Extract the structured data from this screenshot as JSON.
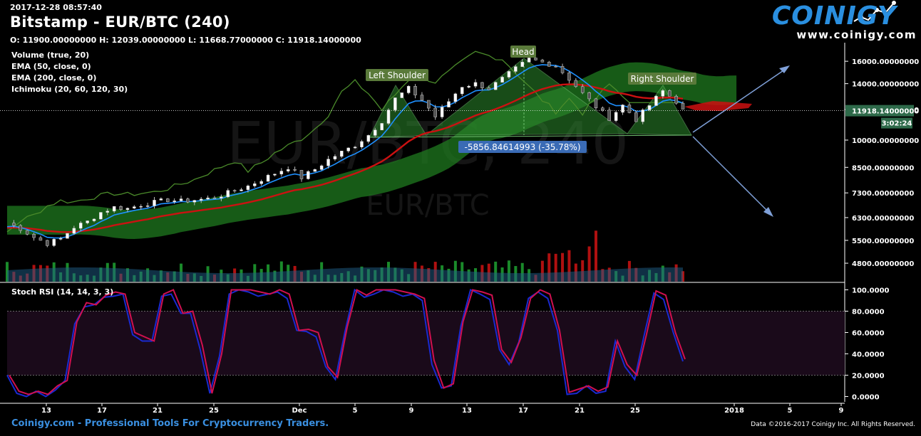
{
  "header": {
    "timestamp": "2017-12-28 08:57:40",
    "title": "Bitstamp - EUR/BTC (240)",
    "ohlc": "O: 11900.00000000 H: 12039.00000000 L: 11668.77000000 C: 11918.14000000"
  },
  "indicators": [
    "Volume (true, 20)",
    "EMA (50, close, 0)",
    "EMA (200, close, 0)",
    "Ichimoku (20, 60, 120, 30)"
  ],
  "logo": {
    "brand": "COINIGY",
    "url": "www.coinigy.com"
  },
  "watermark": {
    "main": "EUR/BTC, 240",
    "sub": "EUR/BTC"
  },
  "footer": {
    "left": "Coinigy.com - Professional Tools For Cryptocurrency Traders.",
    "right": "Data ©2016-2017 Coinigy Inc. All Rights Reserved."
  },
  "colors": {
    "ema50": "#1e90ff",
    "ema200": "#cc1111",
    "lagging": "#4a8a2a",
    "cloud": "#1f7a1f",
    "pattern": "#2d8a2d",
    "stoch_k": "#d01050",
    "stoch_d": "#1a2ad0",
    "price_tag": "#2e6a4a",
    "measure": "#3a6bb5"
  },
  "chart_data": [
    {
      "type": "candlestick",
      "title": "Bitstamp - EUR/BTC (240)",
      "ylim": [
        4300,
        17500
      ],
      "y_scale": "log",
      "y_ticks": [
        "16000.00000000",
        "14000.00000000",
        "12000.00000000",
        "10000.00000000",
        "8500.00000000",
        "7300.00000000",
        "6300.00000000",
        "5500.00000000",
        "4800.00000000"
      ],
      "x_ticks": [
        "13",
        "17",
        "21",
        "25",
        "Dec",
        "5",
        "9",
        "13",
        "17",
        "21",
        "25",
        "2018",
        "5",
        "9"
      ],
      "current_price": "11918.14000000",
      "countdown": "3:02:24",
      "close_path": [
        [
          0,
          6100
        ],
        [
          2,
          5900
        ],
        [
          4,
          5600
        ],
        [
          6,
          5400
        ],
        [
          8,
          5550
        ],
        [
          10,
          5950
        ],
        [
          12,
          6150
        ],
        [
          14,
          6500
        ],
        [
          16,
          6700
        ],
        [
          18,
          6650
        ],
        [
          20,
          6800
        ],
        [
          22,
          6900
        ],
        [
          24,
          7000
        ],
        [
          26,
          6950
        ],
        [
          28,
          7000
        ],
        [
          30,
          7050
        ],
        [
          32,
          7200
        ],
        [
          34,
          7400
        ],
        [
          36,
          7600
        ],
        [
          38,
          7900
        ],
        [
          40,
          8200
        ],
        [
          42,
          8500
        ],
        [
          44,
          8000
        ],
        [
          46,
          8400
        ],
        [
          48,
          8900
        ],
        [
          50,
          9300
        ],
        [
          52,
          9700
        ],
        [
          54,
          10300
        ],
        [
          56,
          11200
        ],
        [
          58,
          12800
        ],
        [
          60,
          13600
        ],
        [
          62,
          12700
        ],
        [
          64,
          11500
        ],
        [
          66,
          12600
        ],
        [
          68,
          13800
        ],
        [
          70,
          14000
        ],
        [
          72,
          13600
        ],
        [
          74,
          14400
        ],
        [
          76,
          15300
        ],
        [
          78,
          16200
        ],
        [
          80,
          15900
        ],
        [
          82,
          15600
        ],
        [
          84,
          14400
        ],
        [
          86,
          13200
        ],
        [
          88,
          12200
        ],
        [
          90,
          11400
        ],
        [
          92,
          12300
        ],
        [
          94,
          11300
        ],
        [
          96,
          12300
        ],
        [
          98,
          13400
        ],
        [
          100,
          12600
        ],
        [
          101,
          11918
        ]
      ],
      "annotations": [
        {
          "label": "Left Shoulder"
        },
        {
          "label": "Head"
        },
        {
          "label": "Right Shoulder"
        },
        {
          "label": "-5856.84614993 (-35.78%)"
        }
      ]
    },
    {
      "type": "line",
      "title": "Stoch RSI (14, 14, 3, 3)",
      "ylim": [
        -5,
        105
      ],
      "y_ticks": [
        "100.0000",
        "80.0000",
        "60.0000",
        "40.0000",
        "20.0000",
        "0.0000"
      ],
      "bands": [
        20,
        80
      ],
      "series": [
        {
          "values": [
            20,
            5,
            2,
            5,
            2,
            10,
            15,
            70,
            88,
            86,
            95,
            98,
            96,
            60,
            56,
            52,
            96,
            100,
            78,
            80,
            48,
            3,
            40,
            100,
            100,
            100,
            98,
            96,
            100,
            96,
            62,
            63,
            60,
            28,
            18,
            65,
            100,
            95,
            100,
            100,
            100,
            98,
            96,
            92,
            34,
            8,
            12,
            70,
            100,
            98,
            95,
            44,
            32,
            55,
            92,
            100,
            96,
            62,
            4,
            7,
            10,
            5,
            9,
            52,
            30,
            20,
            58,
            99,
            95,
            60,
            35
          ]
        }
      ]
    }
  ]
}
